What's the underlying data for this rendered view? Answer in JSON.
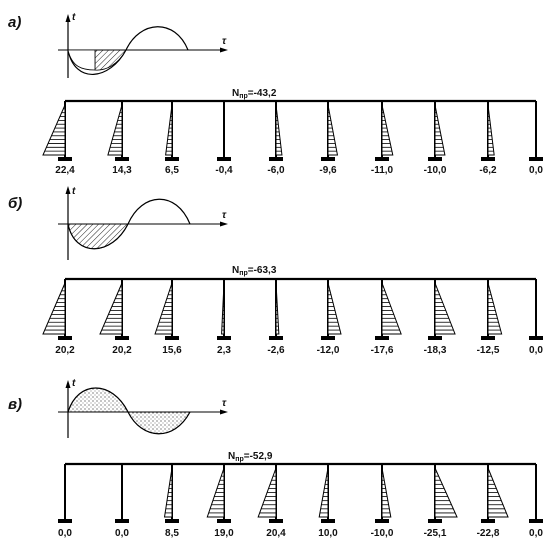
{
  "panels": [
    {
      "letter": "а)",
      "axis_t": "t",
      "axis_tau": "τ",
      "force_label": "N",
      "force_value": "=-43,2",
      "values": [
        "22,4",
        "14,3",
        "6,5",
        "-0,4",
        "-6,0",
        "-9,6",
        "-11,0",
        "-10,0",
        "-6,2",
        "0,0"
      ],
      "moment_fraction": [
        1.0,
        0.64,
        0.29,
        0.02,
        0.27,
        0.43,
        0.49,
        0.45,
        0.28,
        0.0
      ]
    },
    {
      "letter": "б)",
      "axis_t": "t",
      "axis_tau": "τ",
      "force_label": "N",
      "force_value": "=-63,3",
      "values": [
        "20,2",
        "20,2",
        "15,6",
        "2,3",
        "-2,6",
        "-12,0",
        "-17,6",
        "-18,3",
        "-12,5",
        "0,0"
      ],
      "moment_fraction": [
        1.0,
        1.0,
        0.77,
        0.11,
        0.13,
        0.59,
        0.87,
        0.91,
        0.62,
        0.0
      ]
    },
    {
      "letter": "в)",
      "axis_t": "t",
      "axis_tau": "τ",
      "force_label": "N",
      "force_value": "=-52,9",
      "values": [
        "0,0",
        "0,0",
        "8,5",
        "19,0",
        "20,4",
        "10,0",
        "-10,0",
        "-25,1",
        "-22,8",
        "0,0"
      ],
      "moment_fraction": [
        0.0,
        0.0,
        0.34,
        0.76,
        0.81,
        0.4,
        0.4,
        1.0,
        0.91,
        0.0
      ]
    }
  ]
}
